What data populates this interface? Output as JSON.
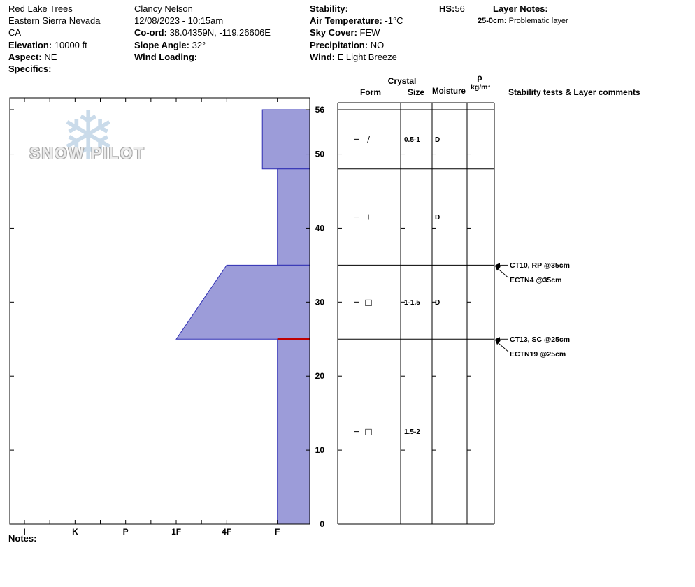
{
  "header": {
    "site": "Red Lake Trees",
    "region": "Eastern Sierra Nevada",
    "state": "CA",
    "elevation_label": "Elevation:",
    "elevation_value": "10000 ft",
    "aspect_label": "Aspect:",
    "aspect_value": "NE",
    "specifics_label": "Specifics:",
    "observer": "Clancy Nelson",
    "datetime": "12/08/2023 - 10:15am",
    "coord_label": "Co-ord:",
    "coord_value": "38.04359N, -119.26606E",
    "slope_angle_label": "Slope Angle:",
    "slope_angle_value": "32°",
    "wind_loading_label": "Wind Loading:",
    "stability_label": "Stability:",
    "air_temp_label": "Air Temperature:",
    "air_temp_value": "-1°C",
    "sky_cover_label": "Sky Cover:",
    "sky_cover_value": "FEW",
    "precip_label": "Precipitation:",
    "precip_value": "NO",
    "wind_label": "Wind:",
    "wind_value": "E Light Breeze",
    "hs_label": "HS:",
    "hs_value": "56",
    "layer_notes_label": "Layer Notes:",
    "layer_note_depth": "25-0cm:",
    "layer_note_text": "Problematic layer"
  },
  "logo": {
    "text": "SNOW PILOT",
    "snowflake_icon": "❄"
  },
  "table_header": {
    "crystal": "Crystal",
    "form": "Form",
    "size": "Size",
    "moisture": "Moisture",
    "density_symbol": "ρ",
    "density_units": "kg/m³",
    "comments": "Stability tests & Layer comments"
  },
  "footer": {
    "notes_label": "Notes:"
  },
  "chart_data": {
    "type": "snow-profile",
    "title": "Snow pit hardness profile with layer grain table",
    "depth_unit": "cm",
    "total_depth": 56,
    "ylim": [
      0,
      56
    ],
    "y_ticks": [
      0,
      10,
      20,
      30,
      40,
      50,
      56
    ],
    "hardness_ticks": [
      "I",
      "K",
      "P",
      "1F",
      "4F",
      "F"
    ],
    "hardness_scale": {
      "I": 0.049,
      "K": 0.218,
      "P": 0.386,
      "1F": 0.555,
      "4F": 0.723,
      "F": 0.892,
      "F+": 0.842
    },
    "colors": {
      "layer_fill": "#9c9cd9",
      "layer_stroke": "#2f2fb4",
      "problem_line": "#c00000",
      "grid": "#000000"
    },
    "layers": [
      {
        "top": 56,
        "bottom": 48,
        "hardness_top": "F+",
        "hardness_bottom": "F+",
        "form_code": "DF",
        "form_symbol": "∕",
        "size": "0.5-1",
        "moisture": "D"
      },
      {
        "top": 48,
        "bottom": 35,
        "hardness_top": "F",
        "hardness_bottom": "F",
        "form_code": "PP",
        "form_symbol": "+",
        "size": "",
        "moisture": "D"
      },
      {
        "top": 35,
        "bottom": 25,
        "hardness_top": "4F",
        "hardness_bottom": "1F",
        "form_code": "FC",
        "form_symbol": "□",
        "size": "1-1.5",
        "moisture": "D"
      },
      {
        "top": 25,
        "bottom": 0,
        "hardness_top": "F",
        "hardness_bottom": "F",
        "form_code": "FC",
        "form_symbol": "□",
        "size": "1.5-2",
        "moisture": ""
      }
    ],
    "problem_layer_depth": 25,
    "tests": [
      {
        "label": "CT10, RP @35cm",
        "depth": 35
      },
      {
        "label": "ECTN4 @35cm",
        "depth": 35
      },
      {
        "label": "CT13, SC @25cm",
        "depth": 25
      },
      {
        "label": "ECTN19 @25cm",
        "depth": 25
      }
    ]
  }
}
